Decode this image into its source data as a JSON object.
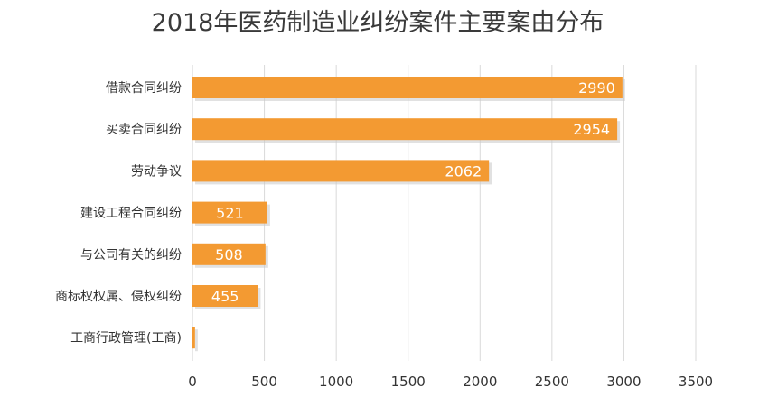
{
  "chart_data": {
    "type": "bar",
    "orientation": "horizontal",
    "title": "2018年医药制造业纠纷案件主要案由分布",
    "categories": [
      "借款合同纠纷",
      "买卖合同纠纷",
      "劳动争议",
      "建设工程合同纠纷",
      "与公司有关的纠纷",
      "商标权权属、侵权纠纷",
      "工商行政管理(工商)"
    ],
    "values": [
      2990,
      2954,
      2062,
      521,
      508,
      455,
      18
    ],
    "xlim": [
      0,
      3500
    ],
    "xticks": [
      0,
      500,
      1000,
      1500,
      2000,
      2500,
      3000,
      3500
    ],
    "grid": true,
    "legend": "none",
    "colors": {
      "bar": "#f39a32",
      "shadow": "#c8c8c8",
      "label": "#ffffff"
    }
  }
}
